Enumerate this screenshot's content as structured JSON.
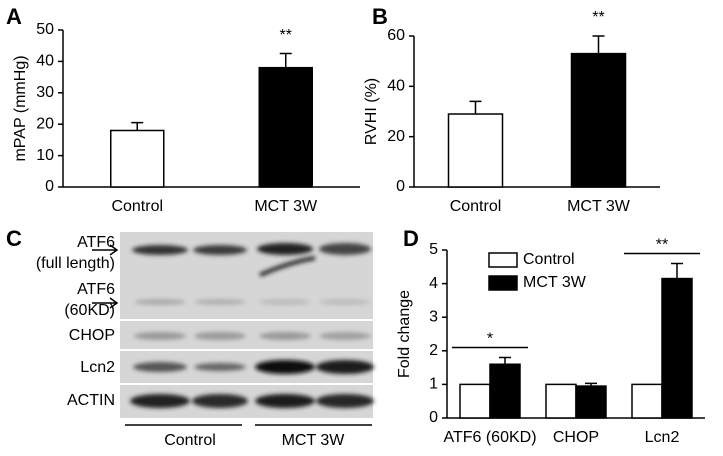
{
  "chart_data": [
    {
      "type": "bar",
      "panel": "A",
      "ylabel": "mPAP (mmHg)",
      "categories": [
        "Control",
        "MCT 3W"
      ],
      "values": [
        18,
        38
      ],
      "errors": [
        2.5,
        4.5
      ],
      "colors": [
        "#ffffff",
        "#000000"
      ],
      "ylim": [
        0,
        50
      ],
      "yticks": [
        0,
        10,
        20,
        30,
        40,
        50
      ],
      "annotations": [
        {
          "text": "**",
          "category": "MCT 3W"
        }
      ]
    },
    {
      "type": "bar",
      "panel": "B",
      "ylabel": "RVHI  (%)",
      "categories": [
        "Control",
        "MCT 3W"
      ],
      "values": [
        29,
        53
      ],
      "errors": [
        5,
        7
      ],
      "colors": [
        "#ffffff",
        "#000000"
      ],
      "ylim": [
        0,
        60
      ],
      "yticks": [
        0,
        20,
        40,
        60
      ],
      "annotations": [
        {
          "text": "**",
          "category": "MCT 3W"
        }
      ]
    },
    {
      "type": "bar",
      "panel": "D",
      "ylabel": "Fold  change",
      "categories": [
        "ATF6 (60KD)",
        "CHOP",
        "Lcn2"
      ],
      "series": [
        {
          "name": "Control",
          "color": "#ffffff",
          "values": [
            1,
            1,
            1
          ]
        },
        {
          "name": "MCT 3W",
          "color": "#000000",
          "values": [
            1.6,
            0.95,
            4.15
          ],
          "errors": [
            0.2,
            0.08,
            0.45
          ]
        }
      ],
      "ylim": [
        0,
        5
      ],
      "yticks": [
        0,
        1,
        2,
        3,
        4,
        5
      ],
      "legend": "upper-left",
      "annotations": [
        {
          "text": "*",
          "category": "ATF6 (60KD)"
        },
        {
          "text": "**",
          "category": "Lcn2"
        }
      ]
    }
  ],
  "blot": {
    "panel": "C",
    "row_labels": [
      "ATF6",
      "(full length)",
      "ATF6",
      "(60KD)",
      "CHOP",
      "Lcn2",
      "ACTIN"
    ],
    "groups": [
      "Control",
      "MCT 3W"
    ]
  }
}
